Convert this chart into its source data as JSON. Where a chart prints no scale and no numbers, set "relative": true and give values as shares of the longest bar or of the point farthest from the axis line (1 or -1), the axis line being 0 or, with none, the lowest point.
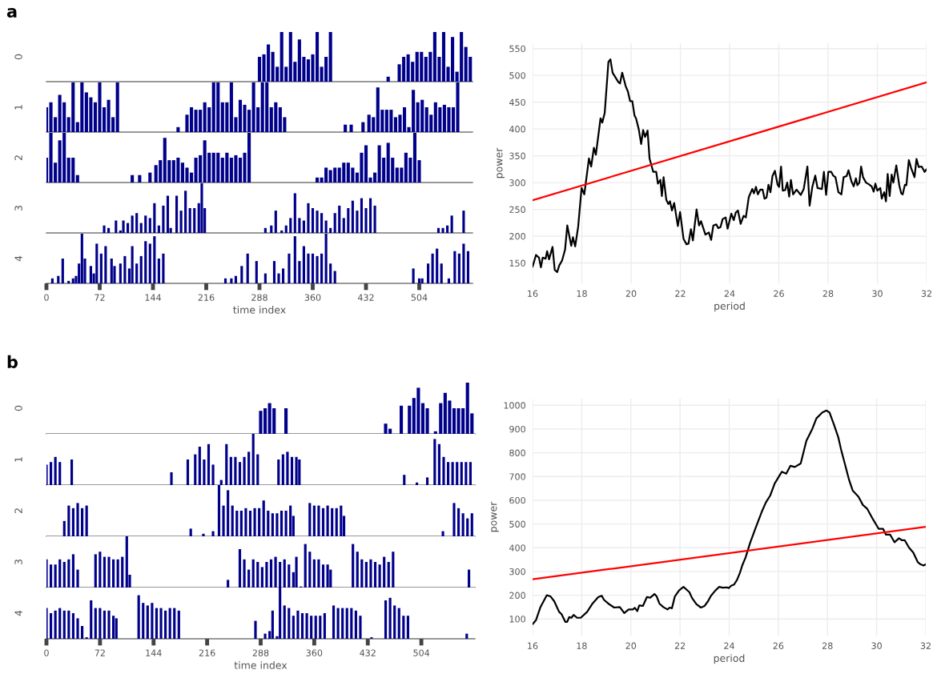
{
  "chart_data": [
    {
      "type": "bar",
      "title": "a",
      "ylabel": "0",
      "relative": true,
      "color": "#00008b",
      "xlim": [
        0,
        576
      ],
      "tick_labels": false,
      "x": [
        288,
        294,
        300,
        306,
        312,
        318,
        324,
        330,
        336,
        342,
        348,
        354,
        360,
        366,
        372,
        378,
        384,
        462,
        477,
        483,
        489,
        495,
        501,
        507,
        513,
        519,
        525,
        531,
        537,
        543,
        549,
        555,
        561,
        567,
        573
      ],
      "values": [
        0.5,
        0.55,
        0.75,
        0.6,
        0.3,
        1.0,
        0.3,
        1.0,
        0.4,
        0.85,
        0.5,
        0.45,
        0.55,
        1.0,
        0.3,
        0.5,
        1.0,
        0.1,
        0.35,
        0.5,
        0.55,
        0.4,
        0.6,
        0.6,
        0.5,
        0.6,
        1.0,
        0.5,
        1.0,
        0.3,
        0.9,
        0.2,
        1.0,
        0.7,
        0.5
      ]
    },
    {
      "type": "bar",
      "ylabel": "1",
      "relative": true,
      "color": "#00008b",
      "xlim": [
        0,
        576
      ],
      "tick_labels": false,
      "x": [
        0,
        6,
        12,
        18,
        24,
        30,
        36,
        42,
        48,
        54,
        60,
        66,
        72,
        78,
        84,
        90,
        96,
        178,
        190,
        196,
        202,
        208,
        214,
        220,
        226,
        232,
        238,
        244,
        250,
        256,
        262,
        268,
        274,
        280,
        286,
        292,
        298,
        304,
        310,
        316,
        322,
        404,
        412,
        428,
        436,
        442,
        448,
        454,
        460,
        466,
        472,
        478,
        484,
        490,
        496,
        502,
        508,
        514,
        520,
        526,
        532,
        538,
        544,
        550,
        556
      ],
      "values": [
        0.5,
        0.6,
        0.3,
        0.75,
        0.6,
        0.3,
        1.0,
        0.2,
        1.0,
        0.8,
        0.7,
        0.6,
        1.0,
        0.5,
        0.65,
        0.3,
        1.0,
        0.1,
        0.35,
        0.5,
        0.45,
        0.45,
        0.6,
        0.5,
        1.0,
        1.0,
        0.6,
        0.6,
        1.0,
        0.3,
        0.65,
        0.55,
        0.45,
        1.0,
        0.5,
        1.0,
        1.0,
        0.5,
        0.6,
        0.5,
        0.3,
        0.15,
        0.15,
        0.2,
        0.35,
        0.3,
        0.9,
        0.45,
        0.45,
        0.45,
        0.3,
        0.35,
        0.5,
        0.1,
        0.85,
        0.6,
        0.65,
        0.5,
        0.35,
        0.6,
        0.5,
        0.55,
        0.5,
        0.5,
        1.0
      ]
    },
    {
      "type": "bar",
      "ylabel": "2",
      "relative": true,
      "color": "#00008b",
      "xlim": [
        0,
        576
      ],
      "tick_labels": false,
      "x": [
        0,
        6,
        12,
        18,
        24,
        30,
        36,
        42,
        116,
        126,
        140,
        148,
        154,
        160,
        166,
        172,
        178,
        184,
        190,
        196,
        202,
        208,
        214,
        220,
        226,
        232,
        238,
        244,
        250,
        256,
        262,
        268,
        274,
        366,
        372,
        378,
        384,
        390,
        396,
        402,
        408,
        414,
        420,
        426,
        432,
        438,
        444,
        450,
        456,
        462,
        468,
        474,
        480,
        486,
        492,
        498,
        504
      ],
      "values": [
        0.5,
        1.0,
        0.4,
        0.85,
        1.0,
        0.5,
        0.5,
        0.15,
        0.15,
        0.15,
        0.2,
        0.35,
        0.45,
        0.9,
        0.45,
        0.45,
        0.5,
        0.4,
        0.3,
        0.2,
        0.5,
        0.55,
        0.85,
        0.6,
        0.6,
        0.6,
        0.5,
        0.6,
        0.5,
        0.55,
        0.5,
        0.6,
        1.0,
        0.1,
        0.1,
        0.3,
        0.25,
        0.3,
        0.3,
        0.4,
        0.4,
        0.3,
        0.2,
        0.6,
        0.75,
        0.1,
        0.2,
        0.75,
        0.5,
        0.8,
        0.5,
        0.3,
        0.3,
        0.6,
        0.5,
        1.0,
        0.45
      ]
    },
    {
      "type": "bar",
      "ylabel": "3",
      "relative": true,
      "color": "#00008b",
      "xlim": [
        0,
        576
      ],
      "tick_labels": false,
      "x": [
        78,
        84,
        94,
        100,
        104,
        110,
        116,
        122,
        128,
        134,
        140,
        146,
        152,
        158,
        164,
        168,
        176,
        182,
        188,
        194,
        200,
        206,
        210,
        214,
        296,
        304,
        310,
        318,
        324,
        330,
        336,
        342,
        348,
        354,
        360,
        366,
        372,
        378,
        384,
        390,
        396,
        402,
        408,
        414,
        420,
        426,
        432,
        438,
        444,
        530,
        536,
        542,
        548,
        564
      ],
      "values": [
        0.15,
        0.1,
        0.25,
        0.05,
        0.25,
        0.2,
        0.35,
        0.4,
        0.2,
        0.35,
        0.3,
        0.6,
        0.15,
        0.55,
        0.75,
        0.1,
        0.75,
        0.45,
        0.85,
        0.5,
        0.5,
        0.6,
        1.0,
        0.5,
        0.1,
        0.15,
        0.45,
        0.05,
        0.15,
        0.3,
        0.8,
        0.3,
        0.25,
        0.6,
        0.5,
        0.45,
        0.4,
        0.25,
        0.1,
        0.4,
        0.55,
        0.3,
        0.5,
        0.65,
        0.45,
        0.7,
        0.5,
        0.7,
        0.55,
        0.1,
        0.1,
        0.15,
        0.35,
        0.45
      ]
    },
    {
      "type": "bar",
      "ylabel": "4",
      "xlabel": "time index",
      "relative": true,
      "color": "#00008b",
      "xlim": [
        0,
        576
      ],
      "xticks": [
        0,
        72,
        144,
        216,
        288,
        360,
        432,
        504
      ],
      "tick_labels": "x",
      "x": [
        8,
        16,
        22,
        30,
        36,
        40,
        44,
        48,
        52,
        60,
        64,
        68,
        74,
        80,
        88,
        92,
        100,
        106,
        112,
        116,
        122,
        128,
        134,
        140,
        146,
        152,
        158,
        242,
        250,
        256,
        264,
        272,
        284,
        296,
        308,
        314,
        320,
        328,
        336,
        342,
        348,
        354,
        360,
        366,
        372,
        378,
        384,
        390,
        496,
        504,
        508,
        516,
        522,
        528,
        534,
        544,
        552,
        558,
        564,
        570
      ],
      "values": [
        0.1,
        0.15,
        0.5,
        0.05,
        0.1,
        0.15,
        0.4,
        1.0,
        0.5,
        0.35,
        0.2,
        0.8,
        0.6,
        0.75,
        0.5,
        0.35,
        0.4,
        0.55,
        0.3,
        0.75,
        0.4,
        0.55,
        0.85,
        0.8,
        0.95,
        0.5,
        0.6,
        0.1,
        0.1,
        0.15,
        0.35,
        0.6,
        0.45,
        0.2,
        0.45,
        0.2,
        0.3,
        0.6,
        0.95,
        0.45,
        0.75,
        0.6,
        0.6,
        0.55,
        0.6,
        1.0,
        0.4,
        0.25,
        0.3,
        0.1,
        0.1,
        0.4,
        0.6,
        0.7,
        0.4,
        0.1,
        0.65,
        0.6,
        0.8,
        0.65
      ]
    },
    {
      "type": "line",
      "xlabel": "period",
      "ylabel": "power",
      "xlim": [
        16,
        32
      ],
      "ylim": [
        112,
        560
      ],
      "xticks": [
        16,
        18,
        20,
        22,
        24,
        26,
        28,
        30,
        32
      ],
      "yticks": [
        150,
        200,
        250,
        300,
        350,
        400,
        450,
        500,
        550
      ],
      "grid": true,
      "series": [
        {
          "color": "#000000",
          "x": [
            16.0,
            16.14,
            16.26,
            16.34,
            16.41,
            16.53,
            16.59,
            16.67,
            16.81,
            16.9,
            17.0,
            17.08,
            17.2,
            17.32,
            17.41,
            17.57,
            17.64,
            17.73,
            17.85,
            17.99,
            18.1,
            18.29,
            18.38,
            18.49,
            18.57,
            18.76,
            18.83,
            18.93,
            19.08,
            19.16,
            19.25,
            19.49,
            19.55,
            19.64,
            19.78,
            19.87,
            19.96,
            20.05,
            20.14,
            20.2,
            20.31,
            20.41,
            20.49,
            20.57,
            20.67,
            20.75,
            20.9,
            21.02,
            21.09,
            21.19,
            21.25,
            21.32,
            21.43,
            21.51,
            21.58,
            21.66,
            21.75,
            21.9,
            21.99,
            22.13,
            22.25,
            22.33,
            22.43,
            22.51,
            22.66,
            22.76,
            22.84,
            23.02,
            23.16,
            23.25,
            23.34,
            23.46,
            23.54,
            23.63,
            23.72,
            23.84,
            23.92,
            24.07,
            24.17,
            24.25,
            24.34,
            24.45,
            24.57,
            24.66,
            24.78,
            24.92,
            24.99,
            25.07,
            25.15,
            25.25,
            25.34,
            25.42,
            25.5,
            25.58,
            25.66,
            25.74,
            25.84,
            25.95,
            26.01,
            26.09,
            26.16,
            26.26,
            26.34,
            26.42,
            26.49,
            26.58,
            26.72,
            26.89,
            27.01,
            27.16,
            27.25,
            27.36,
            27.48,
            27.57,
            27.75,
            27.83,
            27.92,
            28.01,
            28.13,
            28.21,
            28.3,
            28.42,
            28.54,
            28.63,
            28.75,
            28.83,
            28.95,
            29.04,
            29.13,
            29.19,
            29.27,
            29.34,
            29.42,
            29.54,
            29.65,
            29.77,
            29.85,
            29.92,
            30.0,
            30.12,
            30.18,
            30.28,
            30.35,
            30.42,
            30.5,
            30.58,
            30.65,
            30.77,
            30.89,
            30.97,
            31.03,
            31.12,
            31.18,
            31.28,
            31.38,
            31.51,
            31.59,
            31.68,
            31.8,
            31.92,
            32.0
          ],
          "values": [
            143,
            165,
            160,
            142,
            160,
            158,
            172,
            157,
            180,
            137,
            133,
            145,
            155,
            175,
            220,
            182,
            198,
            181,
            217,
            290,
            278,
            345,
            330,
            365,
            352,
            420,
            412,
            430,
            525,
            530,
            505,
            487,
            485,
            505,
            480,
            470,
            452,
            452,
            425,
            420,
            400,
            372,
            398,
            385,
            397,
            345,
            320,
            320,
            298,
            305,
            275,
            310,
            268,
            260,
            265,
            248,
            262,
            219,
            245,
            195,
            185,
            186,
            213,
            192,
            250,
            220,
            228,
            203,
            207,
            193,
            220,
            222,
            215,
            217,
            232,
            235,
            214,
            242,
            230,
            244,
            248,
            223,
            238,
            235,
            273,
            288,
            280,
            292,
            278,
            287,
            287,
            270,
            272,
            296,
            282,
            312,
            322,
            296,
            292,
            330,
            285,
            286,
            300,
            274,
            305,
            278,
            287,
            277,
            288,
            330,
            257,
            292,
            313,
            290,
            288,
            320,
            277,
            320,
            320,
            313,
            310,
            282,
            278,
            310,
            312,
            323,
            302,
            293,
            308,
            295,
            300,
            330,
            310,
            300,
            297,
            293,
            283,
            298,
            285,
            290,
            270,
            282,
            265,
            316,
            275,
            315,
            300,
            332,
            295,
            280,
            278,
            296,
            295,
            342,
            326,
            310,
            344,
            329,
            330,
            320,
            325
          ]
        },
        {
          "color": "#ff0000",
          "x": [
            16,
            32
          ],
          "values": [
            267,
            487
          ]
        }
      ]
    },
    {
      "type": "bar",
      "title": "b",
      "ylabel": "0",
      "relative": true,
      "color": "#00008b",
      "xlim": [
        0,
        576
      ],
      "tick_labels": false,
      "x": [
        288,
        294,
        300,
        306,
        322,
        456,
        462,
        477,
        488,
        494,
        500,
        506,
        512,
        523,
        530,
        536,
        542,
        548,
        554,
        560,
        566,
        572
      ],
      "values": [
        0.45,
        0.5,
        0.6,
        0.5,
        0.5,
        0.2,
        0.1,
        0.55,
        0.55,
        0.7,
        0.9,
        0.6,
        0.5,
        0.05,
        0.6,
        0.8,
        0.65,
        0.5,
        0.5,
        0.5,
        1.0,
        0.4
      ]
    },
    {
      "type": "bar",
      "ylabel": "1",
      "relative": true,
      "color": "#00008b",
      "xlim": [
        0,
        576
      ],
      "tick_labels": false,
      "x": [
        0,
        6,
        12,
        18,
        34,
        168,
        190,
        200,
        206,
        212,
        218,
        224,
        235,
        242,
        248,
        254,
        260,
        266,
        272,
        278,
        284,
        312,
        318,
        324,
        330,
        336,
        340,
        481,
        498,
        512,
        522,
        528,
        534,
        540,
        546,
        552,
        558,
        564,
        570
      ],
      "values": [
        0.4,
        0.45,
        0.55,
        0.45,
        0.5,
        0.25,
        0.5,
        0.6,
        0.75,
        0.5,
        0.8,
        0.4,
        0.1,
        0.8,
        0.55,
        0.55,
        0.45,
        0.55,
        0.65,
        1.0,
        0.6,
        0.5,
        0.6,
        0.65,
        0.55,
        0.55,
        0.5,
        0.2,
        0.05,
        0.15,
        0.9,
        0.8,
        0.55,
        0.45,
        0.45,
        0.45,
        0.45,
        0.45,
        0.45
      ]
    },
    {
      "type": "bar",
      "ylabel": "2",
      "relative": true,
      "color": "#00008b",
      "xlim": [
        0,
        576
      ],
      "tick_labels": false,
      "x": [
        24,
        30,
        36,
        42,
        48,
        54,
        194,
        211,
        224,
        232,
        238,
        244,
        250,
        256,
        262,
        268,
        274,
        280,
        286,
        292,
        298,
        304,
        310,
        316,
        322,
        328,
        332,
        354,
        360,
        366,
        372,
        378,
        384,
        390,
        396,
        400,
        533,
        548,
        554,
        560,
        566,
        572
      ],
      "values": [
        0.3,
        0.6,
        0.55,
        0.65,
        0.55,
        0.6,
        0.15,
        0.05,
        0.1,
        1.0,
        0.6,
        0.9,
        0.6,
        0.5,
        0.5,
        0.55,
        0.5,
        0.55,
        0.55,
        0.7,
        0.5,
        0.45,
        0.45,
        0.5,
        0.5,
        0.6,
        0.4,
        0.65,
        0.6,
        0.6,
        0.55,
        0.6,
        0.55,
        0.55,
        0.6,
        0.4,
        0.1,
        0.65,
        0.55,
        0.45,
        0.35,
        0.45
      ]
    },
    {
      "type": "bar",
      "ylabel": "3",
      "relative": true,
      "color": "#00008b",
      "xlim": [
        0,
        576
      ],
      "tick_labels": false,
      "x": [
        0,
        6,
        12,
        18,
        24,
        30,
        36,
        42,
        66,
        72,
        78,
        84,
        90,
        96,
        102,
        108,
        112,
        244,
        260,
        266,
        272,
        278,
        284,
        290,
        296,
        302,
        308,
        314,
        320,
        326,
        332,
        336,
        342,
        348,
        354,
        360,
        366,
        372,
        378,
        382,
        412,
        418,
        424,
        430,
        436,
        442,
        448,
        454,
        460,
        466,
        568
      ],
      "values": [
        0.55,
        0.45,
        0.45,
        0.55,
        0.5,
        0.55,
        0.65,
        0.35,
        0.65,
        0.7,
        0.6,
        0.6,
        0.55,
        0.55,
        0.6,
        1.0,
        0.25,
        0.15,
        0.75,
        0.55,
        0.35,
        0.55,
        0.5,
        0.4,
        0.5,
        0.55,
        0.6,
        0.5,
        0.55,
        0.45,
        0.3,
        0.6,
        0.02,
        0.85,
        0.7,
        0.55,
        0.55,
        0.45,
        0.45,
        0.35,
        0.85,
        0.7,
        0.55,
        0.5,
        0.55,
        0.5,
        0.45,
        0.6,
        0.5,
        0.7,
        0.35
      ]
    },
    {
      "type": "bar",
      "ylabel": "4",
      "xlabel": "time index",
      "relative": true,
      "color": "#00008b",
      "xlim": [
        0,
        576
      ],
      "xticks": [
        0,
        72,
        144,
        216,
        288,
        360,
        432,
        504
      ],
      "tick_labels": "x",
      "x": [
        0,
        6,
        12,
        18,
        24,
        30,
        36,
        42,
        48,
        54,
        60,
        66,
        72,
        78,
        84,
        90,
        94,
        124,
        130,
        136,
        142,
        148,
        154,
        160,
        166,
        172,
        178,
        281,
        294,
        300,
        304,
        310,
        314,
        320,
        326,
        332,
        338,
        344,
        350,
        356,
        362,
        368,
        374,
        386,
        392,
        398,
        404,
        410,
        416,
        422,
        437,
        456,
        462,
        468,
        474,
        480,
        486,
        565
      ],
      "values": [
        0.6,
        0.5,
        0.55,
        0.6,
        0.55,
        0.55,
        0.5,
        0.4,
        0.25,
        0.03,
        0.75,
        0.6,
        0.6,
        0.55,
        0.55,
        0.45,
        0.4,
        0.85,
        0.7,
        0.65,
        0.7,
        0.6,
        0.6,
        0.55,
        0.6,
        0.6,
        0.55,
        0.35,
        0.1,
        0.15,
        0.55,
        0.05,
        1.0,
        0.65,
        0.6,
        0.45,
        0.55,
        0.5,
        0.5,
        0.45,
        0.45,
        0.45,
        0.5,
        0.65,
        0.6,
        0.6,
        0.6,
        0.6,
        0.55,
        0.45,
        0.03,
        0.75,
        0.8,
        0.65,
        0.6,
        0.45,
        0.45,
        0.1
      ]
    },
    {
      "type": "line",
      "xlabel": "period",
      "ylabel": "power",
      "xlim": [
        16,
        32
      ],
      "ylim": [
        30,
        1028
      ],
      "xticks": [
        16,
        18,
        20,
        22,
        24,
        26,
        28,
        30,
        32
      ],
      "yticks": [
        100,
        200,
        300,
        400,
        500,
        600,
        700,
        800,
        900,
        1000
      ],
      "grid": true,
      "series": [
        {
          "color": "#000000",
          "x": [
            16.0,
            16.14,
            16.32,
            16.58,
            16.73,
            16.88,
            17.08,
            17.18,
            17.33,
            17.41,
            17.49,
            17.58,
            17.67,
            17.81,
            17.96,
            18.22,
            18.44,
            18.67,
            18.81,
            18.91,
            19.08,
            19.32,
            19.55,
            19.73,
            19.91,
            20.08,
            20.16,
            20.26,
            20.34,
            20.49,
            20.65,
            20.79,
            20.96,
            21.05,
            21.16,
            21.32,
            21.49,
            21.58,
            21.67,
            21.79,
            21.96,
            22.14,
            22.38,
            22.49,
            22.67,
            22.85,
            23.0,
            23.14,
            23.26,
            23.44,
            23.59,
            23.73,
            23.91,
            23.98,
            24.08,
            24.2,
            24.32,
            24.44,
            24.53,
            24.67,
            24.85,
            25.08,
            25.32,
            25.49,
            25.67,
            25.85,
            26.14,
            26.32,
            26.49,
            26.67,
            26.91,
            27.14,
            27.38,
            27.55,
            27.79,
            27.96,
            28.08,
            28.26,
            28.44,
            28.55,
            28.69,
            28.88,
            29.03,
            29.26,
            29.44,
            29.61,
            29.85,
            30.08,
            30.26,
            30.38,
            30.55,
            30.73,
            30.91,
            31.02,
            31.14,
            31.32,
            31.49,
            31.67,
            31.79,
            31.91,
            32.0
          ],
          "values": [
            78,
            95,
            150,
            200,
            195,
            175,
            130,
            120,
            88,
            88,
            108,
            105,
            117,
            105,
            105,
            130,
            165,
            192,
            198,
            180,
            165,
            148,
            150,
            125,
            140,
            140,
            147,
            133,
            157,
            155,
            192,
            190,
            205,
            195,
            165,
            150,
            140,
            148,
            145,
            195,
            220,
            235,
            213,
            188,
            162,
            148,
            155,
            175,
            198,
            220,
            235,
            232,
            233,
            230,
            240,
            245,
            265,
            295,
            325,
            360,
            420,
            485,
            550,
            590,
            620,
            670,
            720,
            712,
            745,
            740,
            755,
            850,
            900,
            945,
            970,
            978,
            970,
            920,
            865,
            815,
            760,
            685,
            640,
            615,
            580,
            565,
            520,
            480,
            480,
            455,
            455,
            423,
            440,
            432,
            432,
            400,
            380,
            340,
            330,
            325,
            330
          ]
        },
        {
          "color": "#ff0000",
          "x": [
            16,
            32
          ],
          "values": [
            267,
            488
          ]
        }
      ]
    }
  ]
}
